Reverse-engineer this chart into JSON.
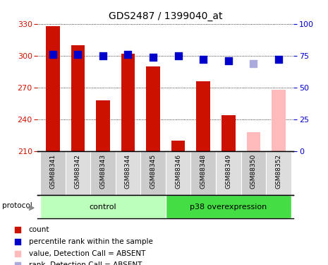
{
  "title": "GDS2487 / 1399040_at",
  "samples": [
    "GSM88341",
    "GSM88342",
    "GSM88343",
    "GSM88344",
    "GSM88345",
    "GSM88346",
    "GSM88348",
    "GSM88349",
    "GSM88350",
    "GSM88352"
  ],
  "bar_values": [
    328,
    310,
    258,
    302,
    290,
    220,
    276,
    244,
    228,
    268
  ],
  "bar_colors": [
    "#cc1100",
    "#cc1100",
    "#cc1100",
    "#cc1100",
    "#cc1100",
    "#cc1100",
    "#cc1100",
    "#cc1100",
    "#ffbbbb",
    "#ffbbbb"
  ],
  "rank_values": [
    76,
    76,
    75,
    76,
    74,
    75,
    72,
    71,
    69,
    72
  ],
  "rank_colors": [
    "#0000cc",
    "#0000cc",
    "#0000cc",
    "#0000cc",
    "#0000cc",
    "#0000cc",
    "#0000cc",
    "#0000cc",
    "#aaaadd",
    "#0000cc"
  ],
  "ylim_left": [
    210,
    330
  ],
  "ylim_right": [
    0,
    100
  ],
  "yticks_left": [
    210,
    240,
    270,
    300,
    330
  ],
  "yticks_right": [
    0,
    25,
    50,
    75,
    100
  ],
  "groups": [
    {
      "label": "control",
      "start": 0,
      "end": 4,
      "color": "#bbffbb"
    },
    {
      "label": "p38 overexpression",
      "start": 5,
      "end": 9,
      "color": "#44dd44"
    }
  ],
  "protocol_label": "protocol",
  "legend": [
    {
      "label": "count",
      "color": "#cc1100"
    },
    {
      "label": "percentile rank within the sample",
      "color": "#0000cc"
    },
    {
      "label": "value, Detection Call = ABSENT",
      "color": "#ffbbbb"
    },
    {
      "label": "rank, Detection Call = ABSENT",
      "color": "#aaaadd"
    }
  ],
  "bar_width": 0.55,
  "plot_bg": "#ffffff",
  "tick_color_left": "#cc1100",
  "tick_color_right": "#0000cc",
  "rank_square_size": 45
}
